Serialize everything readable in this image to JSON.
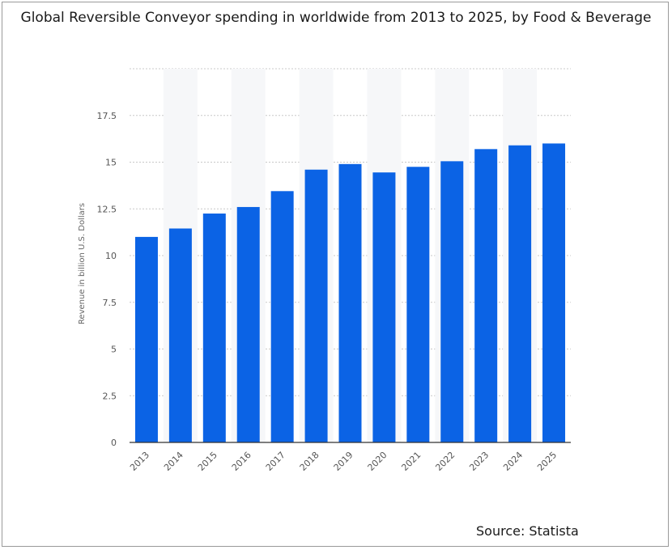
{
  "chart_data": {
    "type": "bar",
    "title": "Global Reversible Conveyor spending in worldwide from 2013 to 2025, by Food & Beverage",
    "xlabel": "",
    "ylabel": "Revenue in billion U.S. Dollars",
    "categories": [
      "2013",
      "2014",
      "2015",
      "2016",
      "2017",
      "2018",
      "2019",
      "2020",
      "2021",
      "2022",
      "2023",
      "2024",
      "2025"
    ],
    "values": [
      11.0,
      11.45,
      12.25,
      12.6,
      13.45,
      14.6,
      14.9,
      14.45,
      14.75,
      15.05,
      15.7,
      15.9,
      16.0
    ],
    "ylim": [
      0,
      20
    ],
    "yticks": [
      0,
      2.5,
      5,
      7.5,
      10,
      12.5,
      15,
      17.5
    ],
    "ytick_labels": [
      "0",
      "2.5",
      "5",
      "7.5",
      "10",
      "12.5",
      "15",
      "17.5"
    ],
    "grid": true,
    "bar_color": "#0b63e5",
    "source": "Source: Statista"
  }
}
